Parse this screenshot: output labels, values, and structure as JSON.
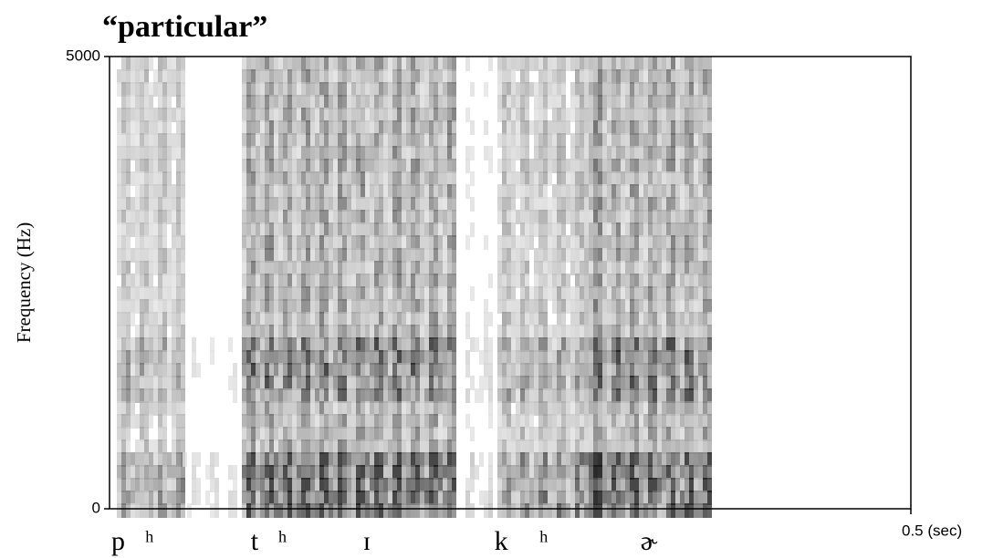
{
  "chart_data": {
    "type": "spectrogram",
    "title": "“particular”",
    "y_label": "Frequency (Hz)",
    "xlim": [
      0,
      0.5
    ],
    "xticks": [
      {
        "value": 0.5,
        "label": "0.5 (sec)"
      }
    ],
    "ylim": [
      0,
      5000
    ],
    "yticks": [
      0,
      5000
    ],
    "annotations": [
      {
        "text": "p",
        "x": 0.0
      },
      {
        "text": "ʰ",
        "x": 0.021
      },
      {
        "text": "t",
        "x": 0.087
      },
      {
        "text": "ʰ",
        "x": 0.104
      },
      {
        "text": "ɪ",
        "x": 0.157
      },
      {
        "text": "k",
        "x": 0.239
      },
      {
        "text": "ʰ",
        "x": 0.267
      },
      {
        "text": "ɚ",
        "x": 0.33
      }
    ]
  }
}
